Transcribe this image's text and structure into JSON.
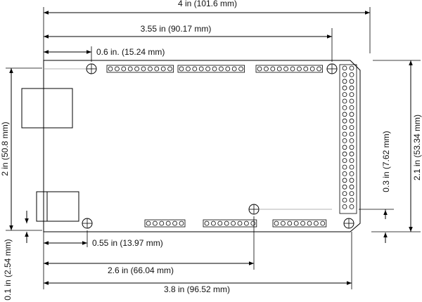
{
  "dimensions": {
    "width_4": "4 in (101.6 mm)",
    "width_355": "3.55 in (90.17 mm)",
    "width_06": "0.6 in. (15.24 mm)",
    "height_2": "2 in (50.8 mm)",
    "height_21": "2.1 in (53.34 mm)",
    "pitch_03": "0.3 in (7.62 mm)",
    "offset_01": "0.1 in (2.54 mm)",
    "width_055": "0.55 in (13.97 mm)",
    "width_26": "2.6 in (66.04 mm)",
    "width_38": "3.8 in (96.52 mm)"
  }
}
